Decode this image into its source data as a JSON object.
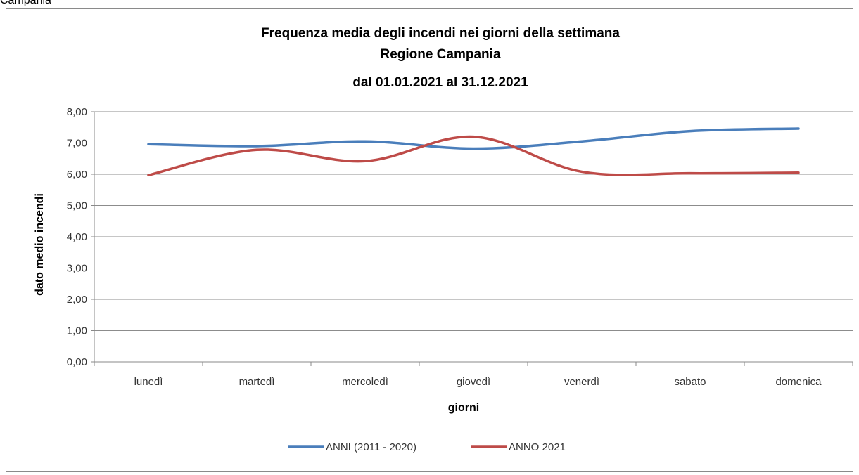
{
  "top_fragment": "Campania",
  "chart_data": {
    "type": "line",
    "title_lines": [
      "Frequenza media degli incendi nei giorni della settimana",
      "Regione Campania",
      "dal 01.01.2021 al 31.12.2021"
    ],
    "xlabel": "giorni",
    "ylabel": "dato medio incendi",
    "ylim": [
      0,
      8
    ],
    "y_ticks": [
      "0,00",
      "1,00",
      "2,00",
      "3,00",
      "4,00",
      "5,00",
      "6,00",
      "7,00",
      "8,00"
    ],
    "categories": [
      "lunedì",
      "martedì",
      "mercoledì",
      "giovedì",
      "venerdì",
      "sabato",
      "domenica"
    ],
    "series": [
      {
        "name": "ANNI (2011 - 2020)",
        "color": "#4a7ebb",
        "values": [
          6.96,
          6.9,
          7.05,
          6.82,
          7.05,
          7.38,
          7.46
        ]
      },
      {
        "name": "ANNO 2021",
        "color": "#be4b48",
        "values": [
          5.97,
          6.78,
          6.42,
          7.2,
          6.08,
          6.03,
          6.05
        ]
      }
    ],
    "grid": true,
    "smooth": true,
    "legend_position": "bottom"
  }
}
